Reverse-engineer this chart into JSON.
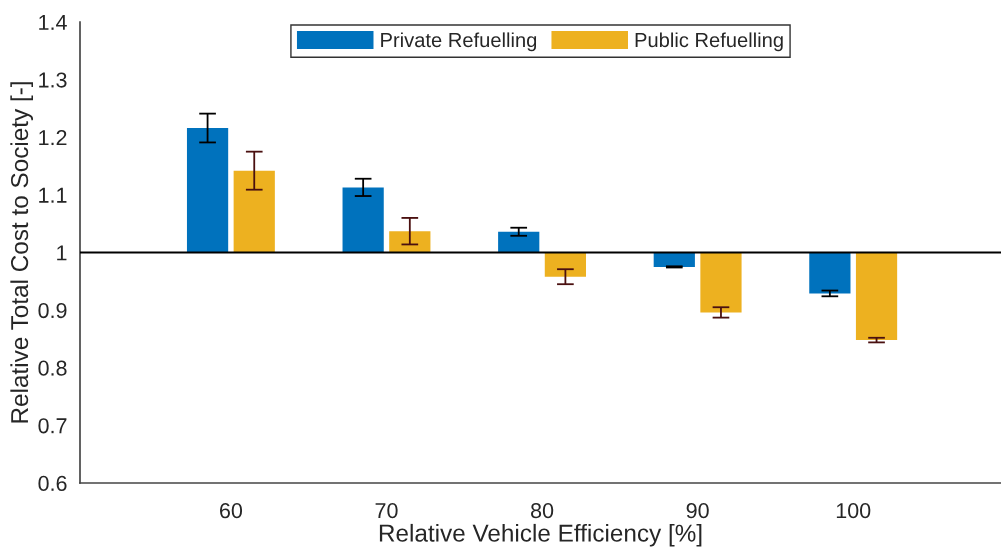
{
  "chart_data": {
    "type": "bar",
    "xlabel": "Relative Vehicle Efficiency [%]",
    "ylabel": "Relative Total Cost to Society [-]",
    "categories": [
      "60",
      "70",
      "80",
      "90",
      "100"
    ],
    "series": [
      {
        "name": "Private Refuelling",
        "color": "#0072bd",
        "base": [
          1,
          1,
          1,
          1,
          1
        ],
        "values": [
          0.216,
          0.113,
          0.036,
          -0.025,
          -0.071
        ],
        "errors": [
          0.025,
          0.015,
          0.007,
          0.001,
          0.005
        ]
      },
      {
        "name": "Public Refuelling",
        "color": "#edb120",
        "base": [
          1,
          1,
          1,
          1,
          1
        ],
        "values": [
          0.142,
          0.037,
          -0.042,
          -0.104,
          -0.152
        ],
        "errors": [
          0.033,
          0.023,
          0.013,
          0.009,
          0.004
        ]
      }
    ],
    "ylim": [
      0.6,
      1.4
    ],
    "yticks": [
      0.6,
      0.7,
      0.8,
      0.9,
      1,
      1.1,
      1.2,
      1.3,
      1.4
    ],
    "ref_lines": [
      {
        "axis": "y",
        "value": 1,
        "color": "#000000"
      }
    ],
    "legend": "top"
  }
}
